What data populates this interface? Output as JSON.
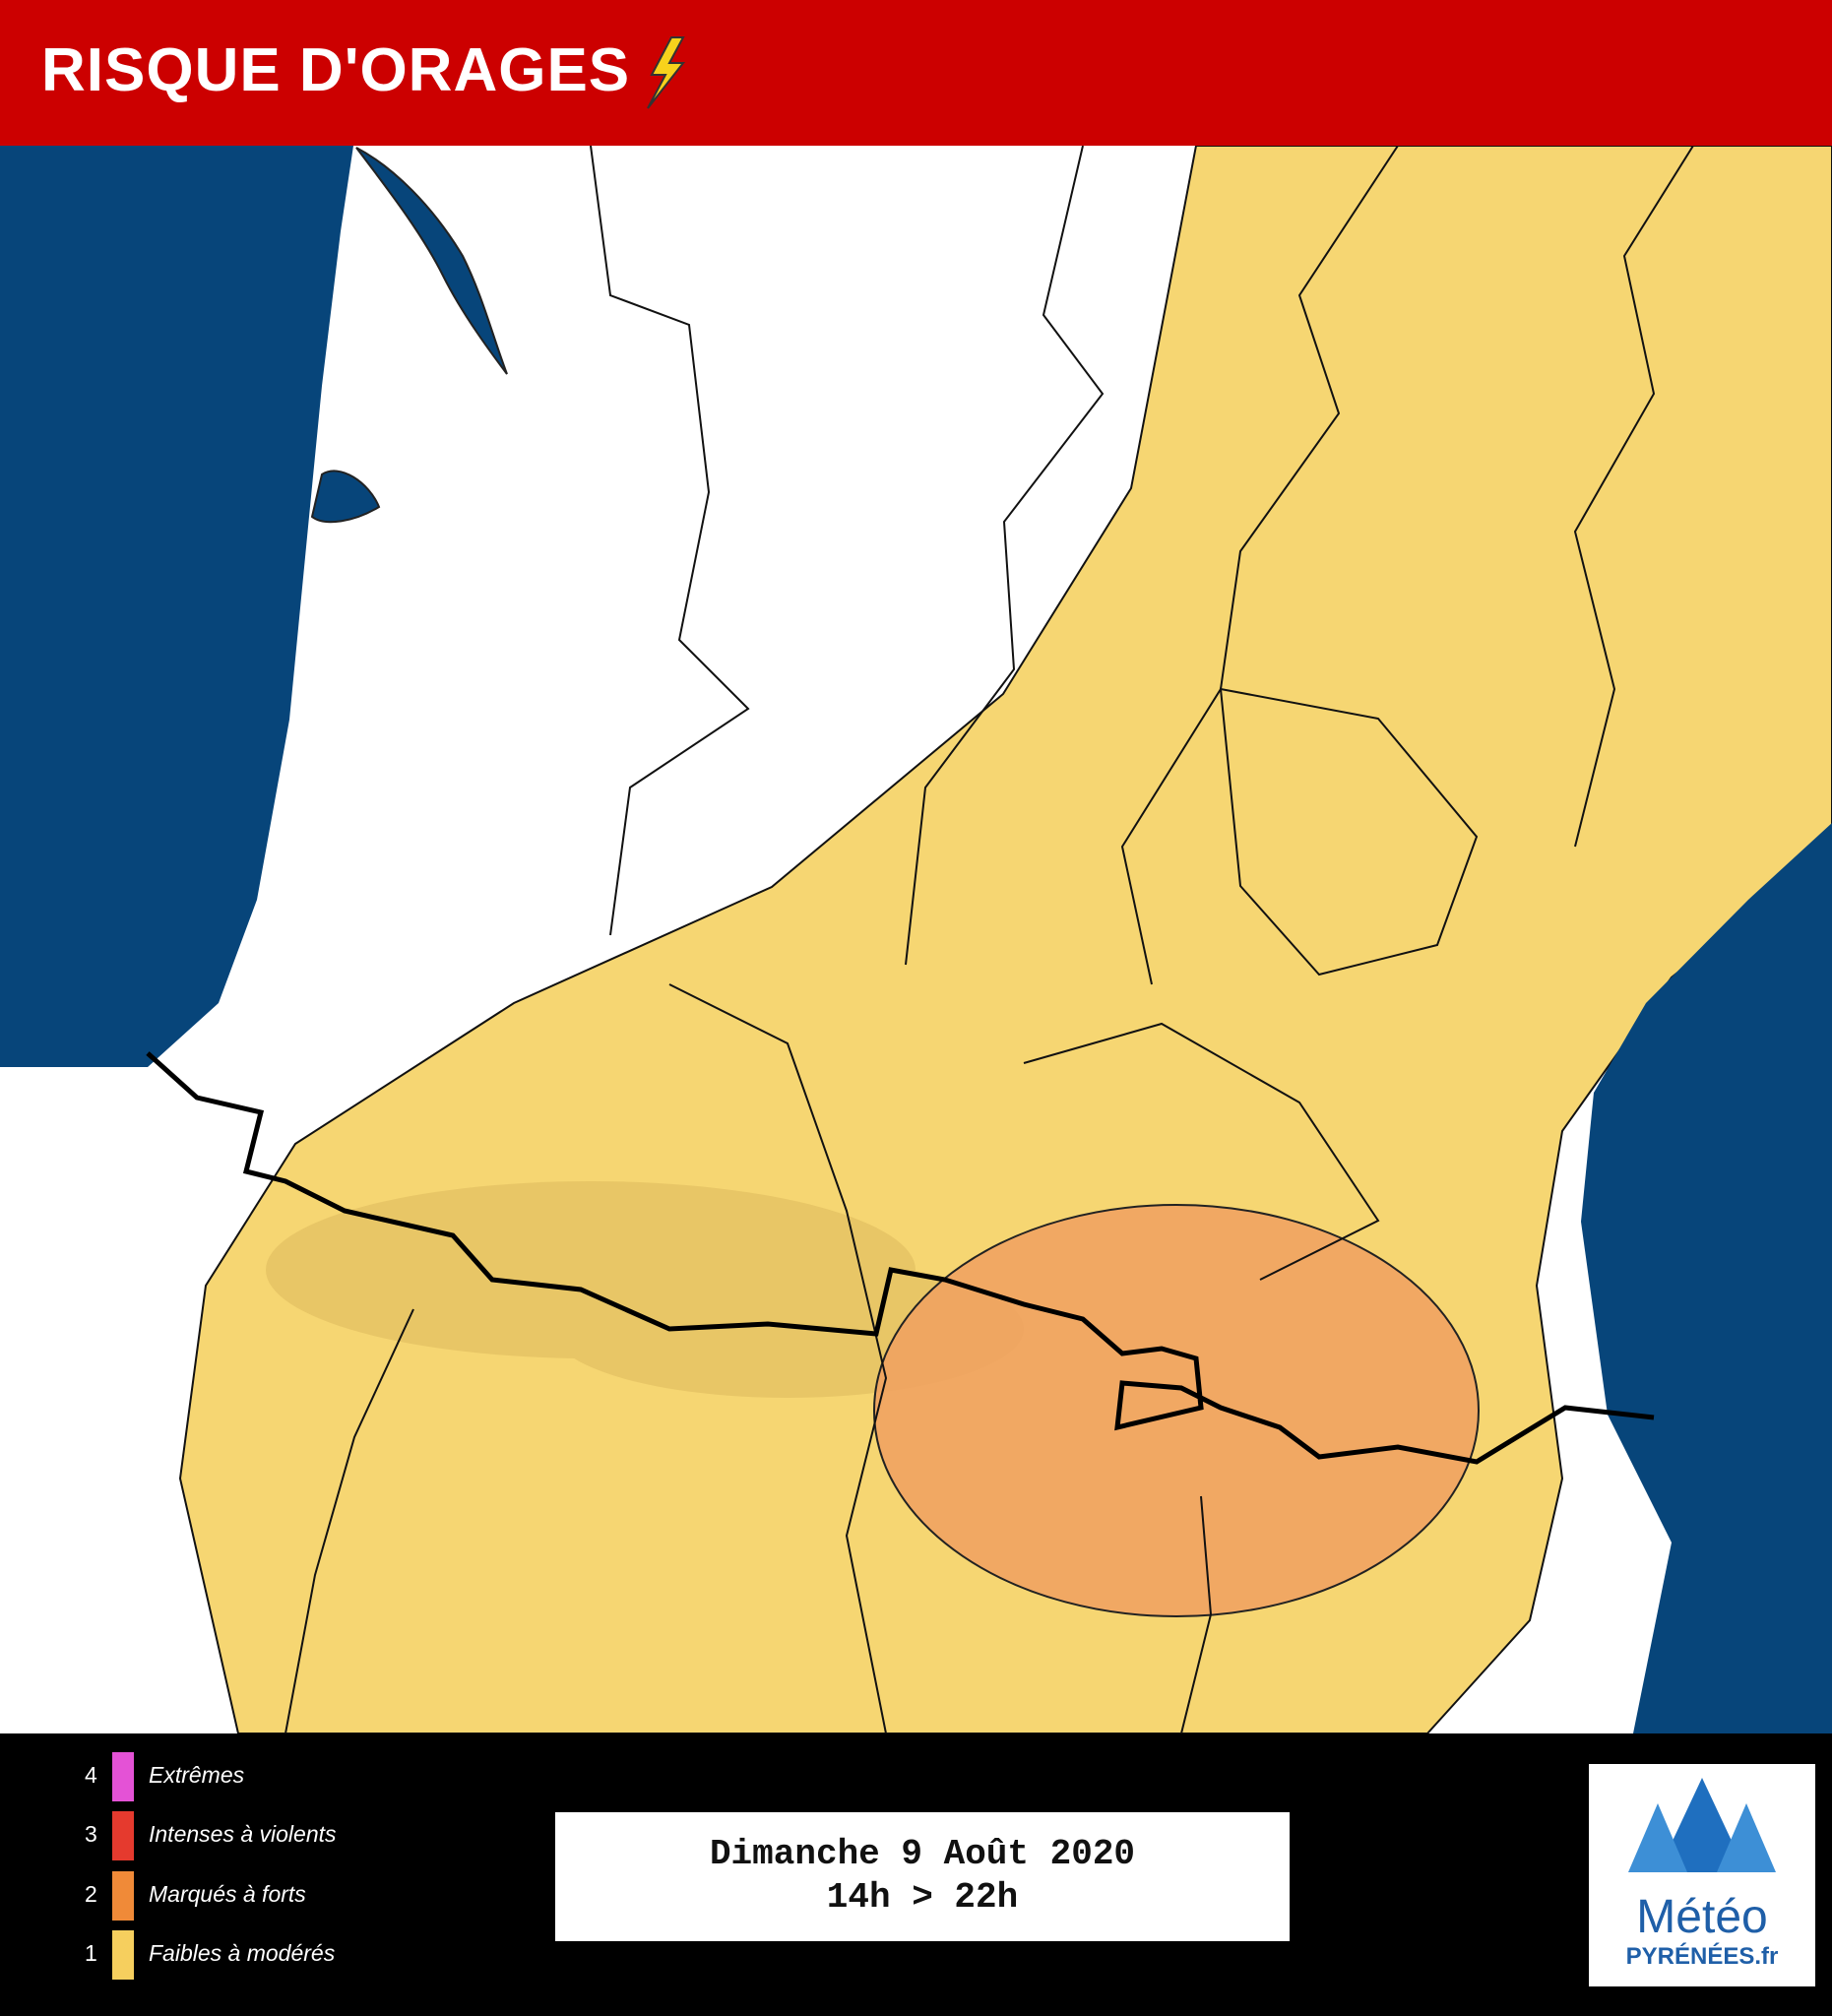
{
  "header": {
    "title": "RISQUE D'ORAGES"
  },
  "legend": [
    {
      "level": 4,
      "label": "Extrêmes",
      "color": "#e452d6"
    },
    {
      "level": 3,
      "label": "Intenses à violents",
      "color": "#e53a2e"
    },
    {
      "level": 2,
      "label": "Marqués à forts",
      "color": "#f08a38"
    },
    {
      "level": 1,
      "label": "Faibles à modérés",
      "color": "#f6cf5e"
    }
  ],
  "date_box": {
    "line1": "Dimanche 9 Août 2020",
    "line2": "14h > 22h"
  },
  "logo": {
    "line1": "Météo",
    "line2": "PYRÉNÉES.fr"
  }
}
